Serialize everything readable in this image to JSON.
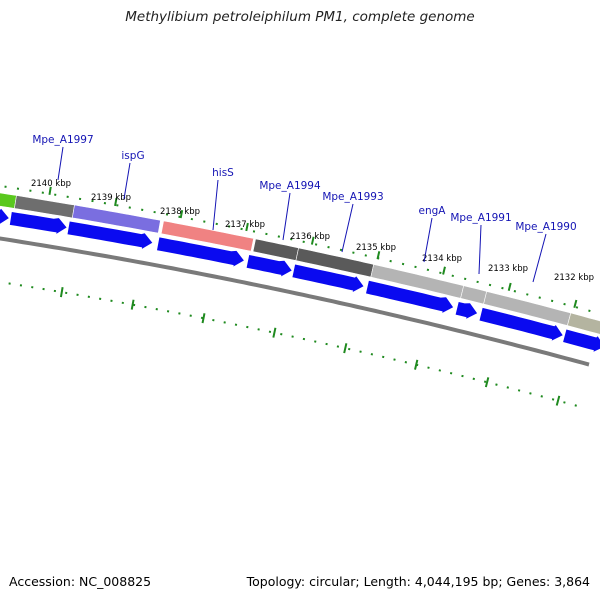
{
  "title": "Methylibium petroleiphilum PM1, complete genome",
  "footer": {
    "accession": "Accession: NC_008825",
    "stats": "Topology: circular; Length: 4,044,195 bp; Genes: 3,864"
  },
  "colors": {
    "cds_arrow": "#0a0af0",
    "backbone": "#7a7a7a",
    "tick": "#1f8a1f",
    "label_line": "#1414b4"
  },
  "tick_labels": [
    "2140 kbp",
    "2139 kbp",
    "2138 kbp",
    "2137 kbp",
    "2136 kbp",
    "2135 kbp",
    "2134 kbp",
    "2133 kbp",
    "2132 kbp"
  ],
  "gene_labels": [
    "Mpe_A1997",
    "ispG",
    "hisS",
    "Mpe_A1994",
    "Mpe_A1993",
    "engA",
    "Mpe_A1991",
    "Mpe_A1990"
  ],
  "cog_segment_colors": [
    "#5ac81e",
    "#6e6e6e",
    "#7a6ee0",
    "#f08282",
    "#5a5a5a",
    "#5a5a5a",
    "#b4b4b4",
    "#b4b4b4",
    "#b4b4b4",
    "#b4b4a0"
  ]
}
